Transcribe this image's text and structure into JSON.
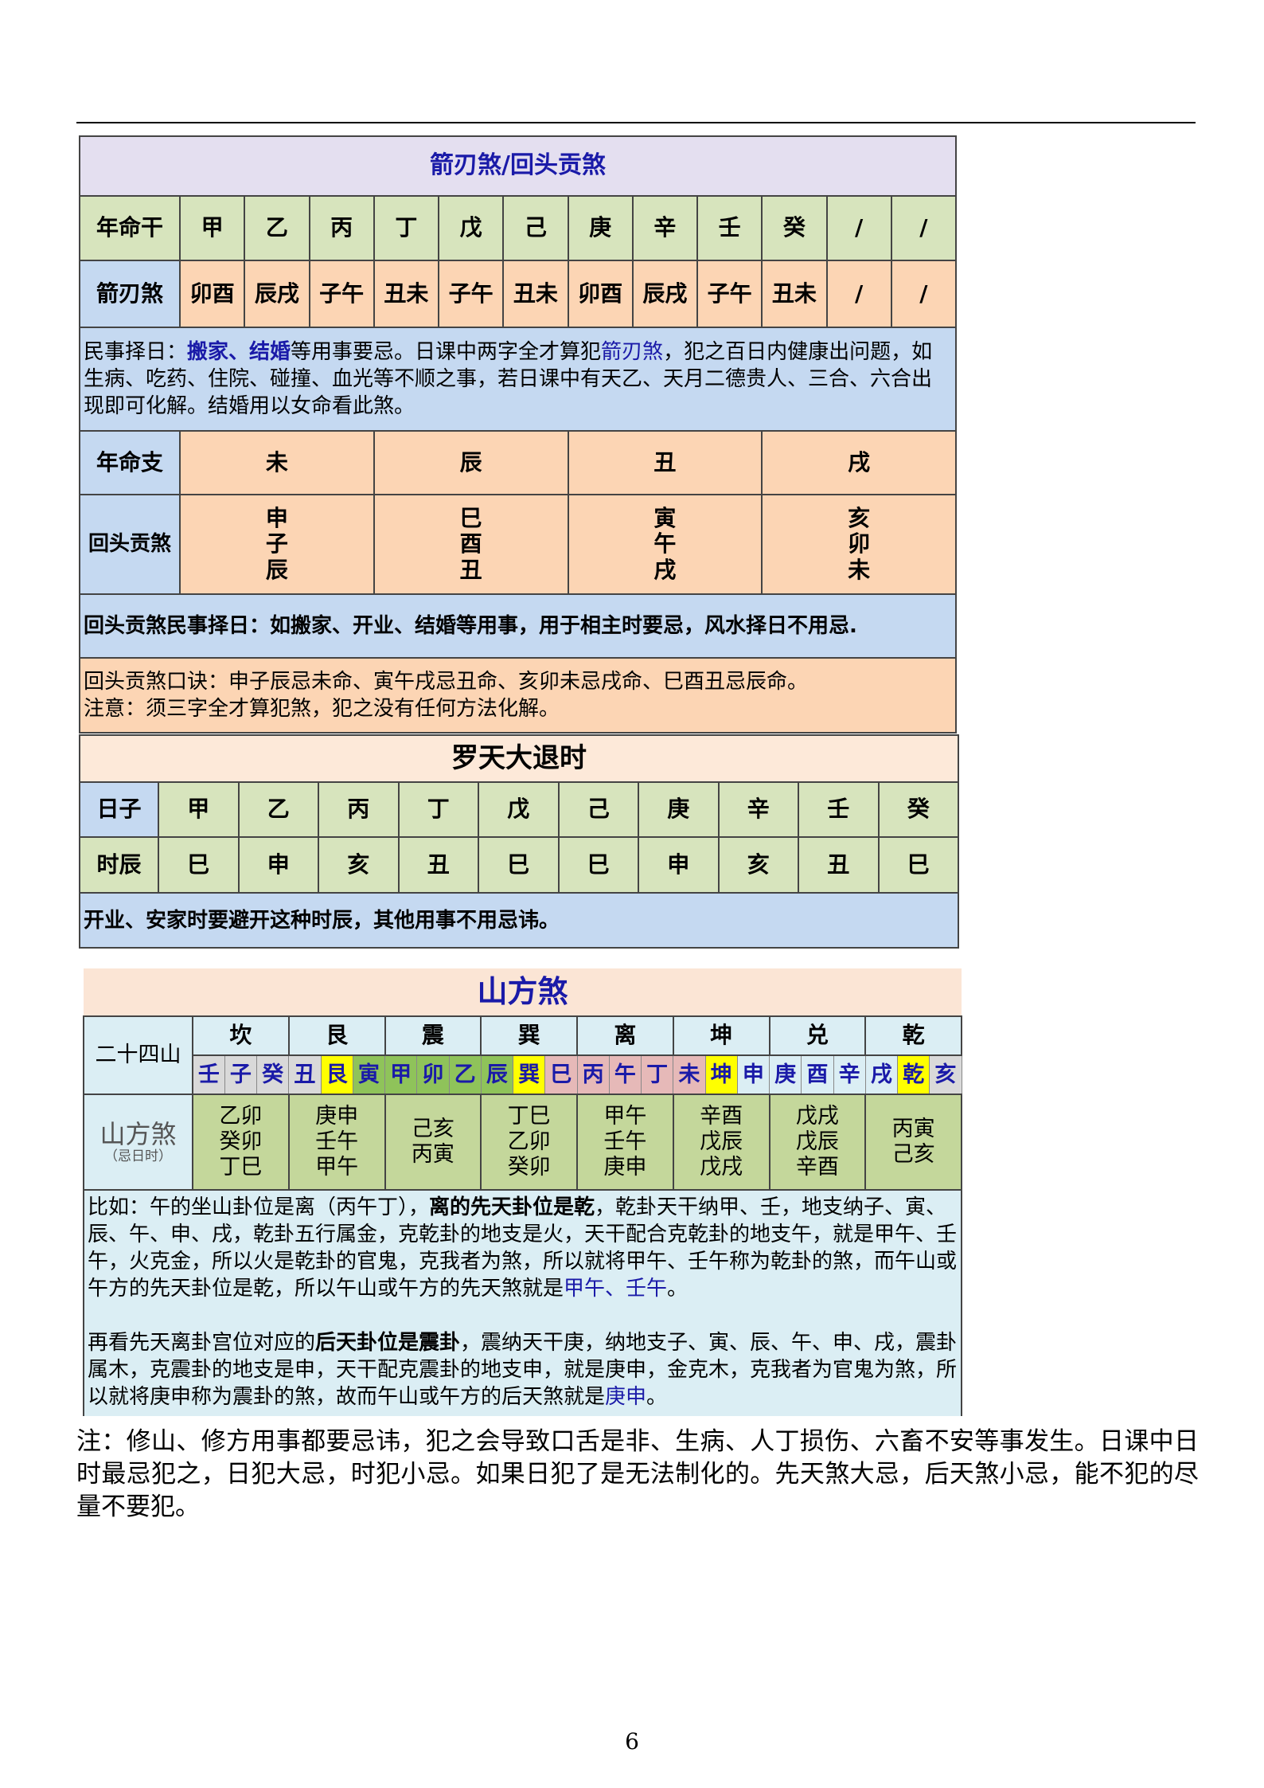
{
  "t1": {
    "title": "箭刃煞/回头贡煞",
    "row_gan": {
      "label": "年命干",
      "cells": [
        "甲",
        "乙",
        "丙",
        "丁",
        "戊",
        "己",
        "庚",
        "辛",
        "壬",
        "癸",
        "/",
        "/"
      ]
    },
    "row_jian": {
      "label": "箭刃煞",
      "cells": [
        "卯酉",
        "辰戌",
        "子午",
        "丑未",
        "子午",
        "丑未",
        "卯酉",
        "辰戌",
        "子午",
        "丑未",
        "/",
        "/"
      ]
    },
    "para1": [
      {
        "t": "民事择日："
      },
      {
        "t": "搬家、结婚",
        "s": "blue sb"
      },
      {
        "t": "等用事要忌。日课中两字全才算犯"
      },
      {
        "t": "箭刃煞",
        "s": "blue"
      },
      {
        "t": "，犯之百日内健康出问题，如生病、吃药、住院、碰撞、血光等不顺之事，若日课中有天乙、天月二德贵人、三合、六合出现即可化解。结婚用以女命看此煞。"
      }
    ],
    "row_zhi": {
      "label": "年命支",
      "cells": [
        "未",
        "辰",
        "丑",
        "戌"
      ]
    },
    "row_huitou": {
      "label": "回头贡煞",
      "cells": [
        [
          "申",
          "子",
          "辰"
        ],
        [
          "巳",
          "酉",
          "丑"
        ],
        [
          "寅",
          "午",
          "戌"
        ],
        [
          "亥",
          "卯",
          "未"
        ]
      ]
    },
    "para2": "回头贡煞民事择日：如搬家、开业、结婚等用事，用于相主时要忌，风水择日不用忌.",
    "para3a": "回头贡煞口诀：申子辰忌未命、寅午戌忌丑命、亥卯未忌戌命、巳酉丑忌辰命。",
    "para3b": "注意：须三字全才算犯煞，犯之没有任何方法化解。"
  },
  "t2": {
    "title": "罗天大退时",
    "row_day": {
      "label": "日子",
      "cells": [
        "甲",
        "乙",
        "丙",
        "丁",
        "戊",
        "己",
        "庚",
        "辛",
        "壬",
        "癸"
      ]
    },
    "row_hour": {
      "label": "时辰",
      "cells": [
        "巳",
        "申",
        "亥",
        "丑",
        "巳",
        "巳",
        "申",
        "亥",
        "丑",
        "巳"
      ]
    },
    "note": "开业、安家时要避开这种时辰，其他用事不用忌讳。"
  },
  "t3": {
    "title": "山方煞",
    "label_24": "二十四山",
    "gua": [
      "坎",
      "艮",
      "震",
      "巽",
      "离",
      "坤",
      "兑",
      "乾"
    ],
    "mountains": [
      {
        "t": "壬",
        "c": "grey"
      },
      {
        "t": "子",
        "c": "grey"
      },
      {
        "t": "癸",
        "c": "grey"
      },
      {
        "t": "丑",
        "c": "grey"
      },
      {
        "t": "艮",
        "c": "yel"
      },
      {
        "t": "寅",
        "c": "grn"
      },
      {
        "t": "甲",
        "c": "grn"
      },
      {
        "t": "卯",
        "c": "grn"
      },
      {
        "t": "乙",
        "c": "grn"
      },
      {
        "t": "辰",
        "c": "grn"
      },
      {
        "t": "巽",
        "c": "yel"
      },
      {
        "t": "巳",
        "c": "pink"
      },
      {
        "t": "丙",
        "c": "pink"
      },
      {
        "t": "午",
        "c": "pink"
      },
      {
        "t": "丁",
        "c": "pink"
      },
      {
        "t": "未",
        "c": "pink"
      },
      {
        "t": "坤",
        "c": "yel"
      },
      {
        "t": "申",
        "c": "lb"
      },
      {
        "t": "庚",
        "c": "lb"
      },
      {
        "t": "酉",
        "c": "lb"
      },
      {
        "t": "辛",
        "c": "lb"
      },
      {
        "t": "戌",
        "c": "lb"
      },
      {
        "t": "乾",
        "c": "yel"
      },
      {
        "t": "亥",
        "c": "grey"
      }
    ],
    "colors": {
      "grey": "#d9d9d9",
      "yel": "#ffff00",
      "grn": "#8fc35a",
      "pink": "#e6b9b8",
      "lb": "#dbeef4"
    },
    "label_sf": "山方煞",
    "label_sf_sub": "（忌日时）",
    "sf": [
      [
        "乙卯",
        "癸卯",
        "丁巳"
      ],
      [
        "庚申",
        "壬午",
        "甲午"
      ],
      [
        "己亥",
        "丙寅"
      ],
      [
        "丁巳",
        "乙卯",
        "癸卯"
      ],
      [
        "甲午",
        "壬午",
        "庚申"
      ],
      [
        "辛酉",
        "戊辰",
        "戊戌"
      ],
      [
        "戊戌",
        "戊辰",
        "辛酉"
      ],
      [
        "丙寅",
        "己亥"
      ]
    ],
    "para1": [
      {
        "t": "比如：午的坐山卦位是离（丙午丁），"
      },
      {
        "t": "离的先天卦位是乾",
        "s": "sb"
      },
      {
        "t": "，乾卦天干纳甲、壬，地支纳子、寅、辰、午、申、戌，乾卦五行属金，克乾卦的地支是火，天干配合克乾卦的地支午，就是甲午、壬午，火克金，所以火是乾卦的官鬼，克我者为煞，所以就将甲午、壬午称为乾卦的煞，而午山或午方的先天卦位是乾，所以午山或午方的先天煞就是"
      },
      {
        "t": "甲午、壬午",
        "s": "blue"
      },
      {
        "t": "。"
      }
    ],
    "para2": [
      {
        "t": "再看先天离卦宫位对应的"
      },
      {
        "t": "后天卦位是震卦",
        "s": "sb"
      },
      {
        "t": "，震纳天干庚，纳地支子、寅、辰、午、申、戌，震卦属木，克震卦的地支是申，天干配克震卦的地支申，就是庚申，金克木，克我者为官鬼为煞，所以就将庚申称为震卦的煞，故而午山或午方的后天煞就是"
      },
      {
        "t": "庚申",
        "s": "blue"
      },
      {
        "t": "。"
      }
    ]
  },
  "note": "注：修山、修方用事都要忌讳，犯之会导致口舌是非、生病、人丁损伤、六畜不安等事发生。日课中日时最忌犯之，日犯大忌，时犯小忌。如果日犯了是无法制化的。先天煞大忌，后天煞小忌，能不犯的尽量不要犯。",
  "page_number": "6"
}
